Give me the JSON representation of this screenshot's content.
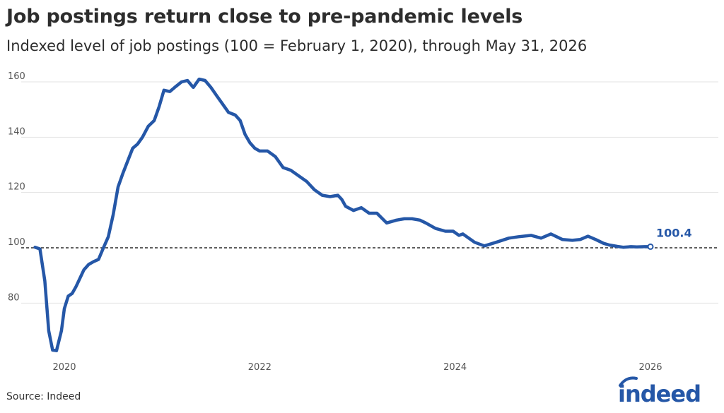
{
  "title": "Job postings return close to pre-pandemic levels",
  "subtitle": "Indexed level of job postings (100 = February 1, 2020), through May 31, 2026",
  "source": "Source: Indeed",
  "logo_text": "indeed",
  "colors": {
    "line": "#2557a7",
    "reference": "#000000",
    "grid": "#e3e3e3"
  },
  "chart_data": {
    "type": "line",
    "title": "Job postings return close to pre-pandemic levels",
    "subtitle": "Indexed level of job postings (100 = February 1, 2020), through May 31, 2026",
    "xlabel": "",
    "ylabel": "",
    "xlim": [
      2019.65,
      2026.72
    ],
    "ylim": [
      59,
      166
    ],
    "yticks": [
      80,
      100,
      120,
      140,
      160
    ],
    "ytick_labels": [
      "80",
      "100",
      "120",
      "140",
      "160"
    ],
    "xticks": [
      2020,
      2022,
      2024,
      2026
    ],
    "xtick_labels": [
      "2020",
      "2022",
      "2024",
      "2026"
    ],
    "grid": "horizontal",
    "reference_line": {
      "y": 100,
      "style": "dashed"
    },
    "end_label": "100.4",
    "series": [
      {
        "x": [
          2019.7,
          2019.75,
          2019.8,
          2019.84,
          2019.88,
          2019.92,
          2019.97,
          2020.0,
          2020.04,
          2020.08,
          2020.12,
          2020.16,
          2020.2,
          2020.25,
          2020.3,
          2020.35,
          2020.4,
          2020.45,
          2020.5,
          2020.55,
          2020.6,
          2020.65,
          2020.7,
          2020.75,
          2020.8,
          2020.86,
          2020.92,
          2020.97,
          2021.02,
          2021.08,
          2021.13,
          2021.2,
          2021.26,
          2021.32,
          2021.38,
          2021.44,
          2021.5,
          2021.56,
          2021.62,
          2021.68,
          2021.75,
          2021.8,
          2021.85,
          2021.9,
          2021.95,
          2022.0,
          2022.08,
          2022.16,
          2022.24,
          2022.32,
          2022.4,
          2022.48,
          2022.56,
          2022.64,
          2022.72,
          2022.8,
          2022.84,
          2022.88,
          2022.96,
          2023.04,
          2023.12,
          2023.2,
          2023.3,
          2023.4,
          2023.48,
          2023.56,
          2023.64,
          2023.7,
          2023.8,
          2023.9,
          2023.98,
          2024.04,
          2024.08,
          2024.2,
          2024.3,
          2024.42,
          2024.55,
          2024.65,
          2024.78,
          2024.88,
          2024.98,
          2025.1,
          2025.2,
          2025.28,
          2025.36,
          2025.44,
          2025.52,
          2025.58,
          2025.66,
          2025.72,
          2025.8,
          2025.86,
          2025.94,
          2026.0
        ],
        "y": [
          100.2,
          99.6,
          88,
          70,
          63,
          62.8,
          70,
          78,
          82.5,
          83.5,
          86,
          89,
          92,
          94,
          95,
          95.8,
          100,
          104,
          112,
          122,
          127,
          131.5,
          136,
          137.5,
          140,
          144,
          146,
          151,
          157,
          156.5,
          158,
          160,
          160.5,
          158,
          161,
          160.5,
          158,
          155,
          152,
          149,
          148,
          146,
          141,
          138,
          136,
          135,
          135,
          133,
          129,
          128,
          126,
          124,
          121,
          119,
          118.5,
          119,
          117.5,
          115,
          113.5,
          114.5,
          112.5,
          112.5,
          109,
          110,
          110.5,
          110.5,
          110,
          109,
          107,
          106,
          106,
          104.5,
          105,
          102,
          100.7,
          102,
          103.5,
          104,
          104.5,
          103.5,
          105,
          103,
          102.7,
          103,
          104.2,
          103,
          101.6,
          101,
          100.5,
          100.2,
          100.4,
          100.3,
          100.4,
          100.4
        ]
      }
    ]
  }
}
